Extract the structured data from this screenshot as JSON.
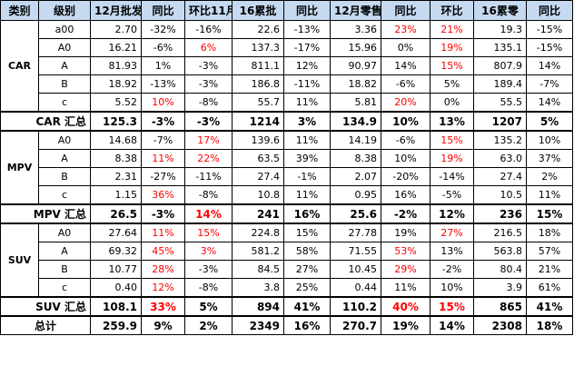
{
  "headers": [
    "类别",
    "级别",
    "12月批发",
    "同比",
    "环比11月",
    "16累批",
    "同比",
    "12月零售",
    "同比",
    "环比",
    "16累零",
    "同比"
  ],
  "groups": [
    {
      "category": "CAR",
      "rows": [
        {
          "level": "a00",
          "values": [
            "2.70",
            "-32%",
            "-16%",
            "22.6",
            "-13%",
            "3.36",
            "23%",
            "21%",
            "19.3",
            "-15%"
          ],
          "red": [
            6,
            7
          ]
        },
        {
          "level": "A0",
          "values": [
            "16.21",
            "-6%",
            "6%",
            "137.3",
            "-17%",
            "15.96",
            "0%",
            "19%",
            "135.1",
            "-15%"
          ],
          "red": [
            2,
            7
          ]
        },
        {
          "level": "A",
          "values": [
            "81.93",
            "1%",
            "-3%",
            "811.1",
            "12%",
            "90.97",
            "14%",
            "15%",
            "807.9",
            "14%"
          ],
          "red": [
            7
          ]
        },
        {
          "level": "B",
          "values": [
            "18.92",
            "-13%",
            "-3%",
            "186.8",
            "-11%",
            "18.82",
            "-6%",
            "5%",
            "189.4",
            "-7%"
          ],
          "red": []
        },
        {
          "level": "c",
          "values": [
            "5.52",
            "10%",
            "-8%",
            "55.7",
            "11%",
            "5.81",
            "20%",
            "0%",
            "55.5",
            "14%"
          ],
          "red": [
            1,
            6
          ]
        }
      ],
      "summary": {
        "label": "CAR 汇总",
        "values": [
          "125.3",
          "-3%",
          "-3%",
          "1214",
          "3%",
          "134.9",
          "10%",
          "13%",
          "1207",
          "5%"
        ],
        "red": []
      }
    },
    {
      "category": "MPV",
      "rows": [
        {
          "level": "A0",
          "values": [
            "14.68",
            "-7%",
            "17%",
            "139.6",
            "11%",
            "14.19",
            "-6%",
            "15%",
            "135.2",
            "10%"
          ],
          "red": [
            2,
            7
          ]
        },
        {
          "level": "A",
          "values": [
            "8.38",
            "11%",
            "22%",
            "63.5",
            "39%",
            "8.38",
            "10%",
            "19%",
            "63.0",
            "37%"
          ],
          "red": [
            1,
            2,
            7
          ]
        },
        {
          "level": "B",
          "values": [
            "2.31",
            "-27%",
            "-11%",
            "27.4",
            "-1%",
            "2.07",
            "-20%",
            "-14%",
            "27.4",
            "2%"
          ],
          "red": []
        },
        {
          "level": "c",
          "values": [
            "1.15",
            "36%",
            "-8%",
            "10.8",
            "11%",
            "0.95",
            "16%",
            "-5%",
            "10.5",
            "11%"
          ],
          "red": [
            1
          ]
        }
      ],
      "summary": {
        "label": "MPV 汇总",
        "values": [
          "26.5",
          "-3%",
          "14%",
          "241",
          "16%",
          "25.6",
          "-2%",
          "12%",
          "236",
          "15%"
        ],
        "red": [
          2
        ]
      }
    },
    {
      "category": "SUV",
      "rows": [
        {
          "level": "A0",
          "values": [
            "27.64",
            "11%",
            "15%",
            "224.8",
            "15%",
            "27.78",
            "19%",
            "27%",
            "216.5",
            "18%"
          ],
          "red": [
            1,
            2,
            7
          ]
        },
        {
          "level": "A",
          "values": [
            "69.32",
            "45%",
            "3%",
            "581.2",
            "58%",
            "71.55",
            "53%",
            "13%",
            "563.8",
            "57%"
          ],
          "red": [
            1,
            2,
            6
          ]
        },
        {
          "level": "B",
          "values": [
            "10.77",
            "28%",
            "-3%",
            "84.5",
            "27%",
            "10.45",
            "29%",
            "-2%",
            "80.4",
            "21%"
          ],
          "red": [
            1,
            6
          ]
        },
        {
          "level": "c",
          "values": [
            "0.40",
            "12%",
            "-8%",
            "3.8",
            "25%",
            "0.44",
            "11%",
            "10%",
            "3.9",
            "61%"
          ],
          "red": [
            1
          ]
        }
      ],
      "summary": {
        "label": "SUV 汇总",
        "values": [
          "108.1",
          "33%",
          "5%",
          "894",
          "41%",
          "110.2",
          "40%",
          "15%",
          "865",
          "41%"
        ],
        "red": [
          1,
          6,
          7
        ]
      }
    }
  ],
  "total": {
    "label": "总计",
    "values": [
      "259.9",
      "9%",
      "2%",
      "2349",
      "16%",
      "270.7",
      "19%",
      "14%",
      "2308",
      "18%"
    ],
    "red": []
  }
}
